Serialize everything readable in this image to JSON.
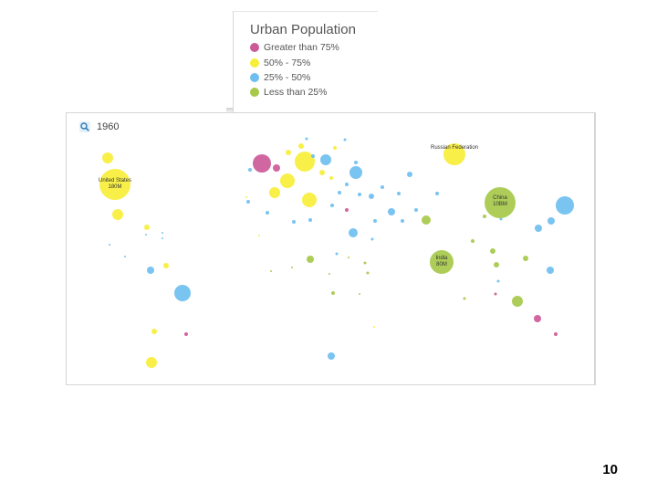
{
  "legend": {
    "title": "Urban Population",
    "items": [
      {
        "label": "Greater than 75%",
        "color": "#cc5a98"
      },
      {
        "label": "50% - 75%",
        "color": "#f7ee3a"
      },
      {
        "label": "25% - 50%",
        "color": "#6ebff0"
      },
      {
        "label": "Less than 25%",
        "color": "#a6c94a"
      }
    ]
  },
  "map": {
    "year": "1960",
    "zoom_icon": "magnifier-icon"
  },
  "chart_data": {
    "type": "bubble-map",
    "title": "Urban Population",
    "year": "1960",
    "categories": [
      "Greater than 75%",
      "50% - 75%",
      "25% - 50%",
      "Less than 25%"
    ],
    "labeled_bubbles": [
      {
        "country": "United States",
        "population": "180M",
        "category": "50% - 75%"
      },
      {
        "country": "Russian Federation",
        "population": "",
        "category": "50% - 75%"
      },
      {
        "country": "China",
        "population": "10BM",
        "category": "Less than 25%"
      },
      {
        "country": "India",
        "population": "80M",
        "category": "Less than 25%"
      }
    ]
  },
  "page": {
    "number": "10"
  }
}
